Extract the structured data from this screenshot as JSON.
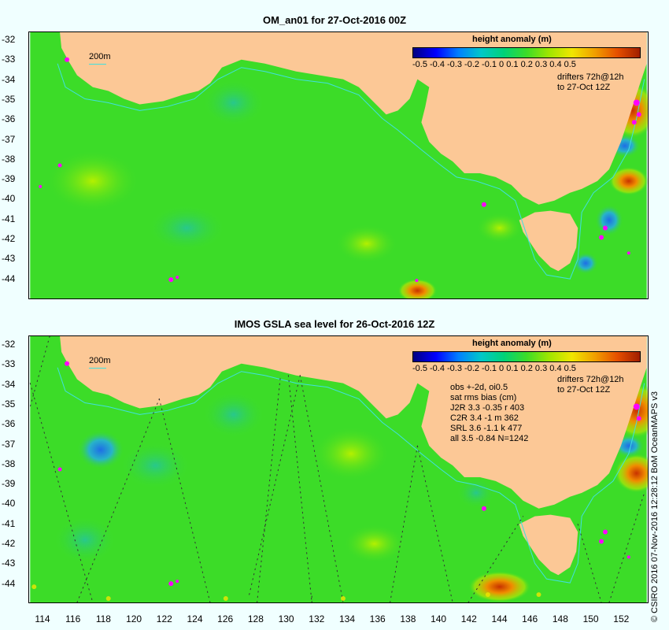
{
  "top_panel": {
    "title": "OM_an01 for 27-Oct-2016 00Z",
    "y_ticks": [
      "-32",
      "-33",
      "-34",
      "-35",
      "-36",
      "-37",
      "-38",
      "-39",
      "-40",
      "-41",
      "-42",
      "-43",
      "-44"
    ],
    "scale_label": "200m",
    "legend_title": "height anomaly (m)",
    "legend_ticks": "-0.5 -0.4 -0.3 -0.2 -0.1   0   0.1  0.2  0.3  0.4  0.5",
    "drifters_line1": "drifters 72h@12h",
    "drifters_line2": "to 27-Oct 12Z"
  },
  "bottom_panel": {
    "title": "IMOS GSLA sea level  for 26-Oct-2016 12Z",
    "y_ticks": [
      "-32",
      "-33",
      "-34",
      "-35",
      "-36",
      "-37",
      "-38",
      "-39",
      "-40",
      "-41",
      "-42",
      "-43",
      "-44"
    ],
    "x_ticks": [
      "114",
      "116",
      "118",
      "120",
      "122",
      "124",
      "126",
      "128",
      "130",
      "132",
      "134",
      "136",
      "138",
      "140",
      "142",
      "144",
      "146",
      "148",
      "150",
      "152"
    ],
    "scale_label": "200m",
    "legend_title": "height anomaly (m)",
    "legend_ticks": "-0.5 -0.4 -0.3 -0.2 -0.1   0   0.1  0.2  0.3  0.4  0.5",
    "drifters_line1": "drifters 72h@12h",
    "drifters_line2": "to 27-Oct 12Z",
    "stats": [
      "obs +-2d, oi0.5",
      "sat rms bias (cm)",
      "J2R   3.3 -0.35 r 403",
      "C2R   3.4 -1 m 362",
      "SRL   3.6 -1.1 k 477",
      "all   3.5 -0.84 N=1242"
    ]
  },
  "credit": "© CSIRO 2016  07-Nov-2016 12:28:12 BoM OceanMAPS v3",
  "colors": {
    "land": "#fcc896",
    "ocean_base": "#3cdc28",
    "background": "#f0ffff",
    "drifters": "#ff00ff",
    "isobath": "#40e0e0"
  }
}
